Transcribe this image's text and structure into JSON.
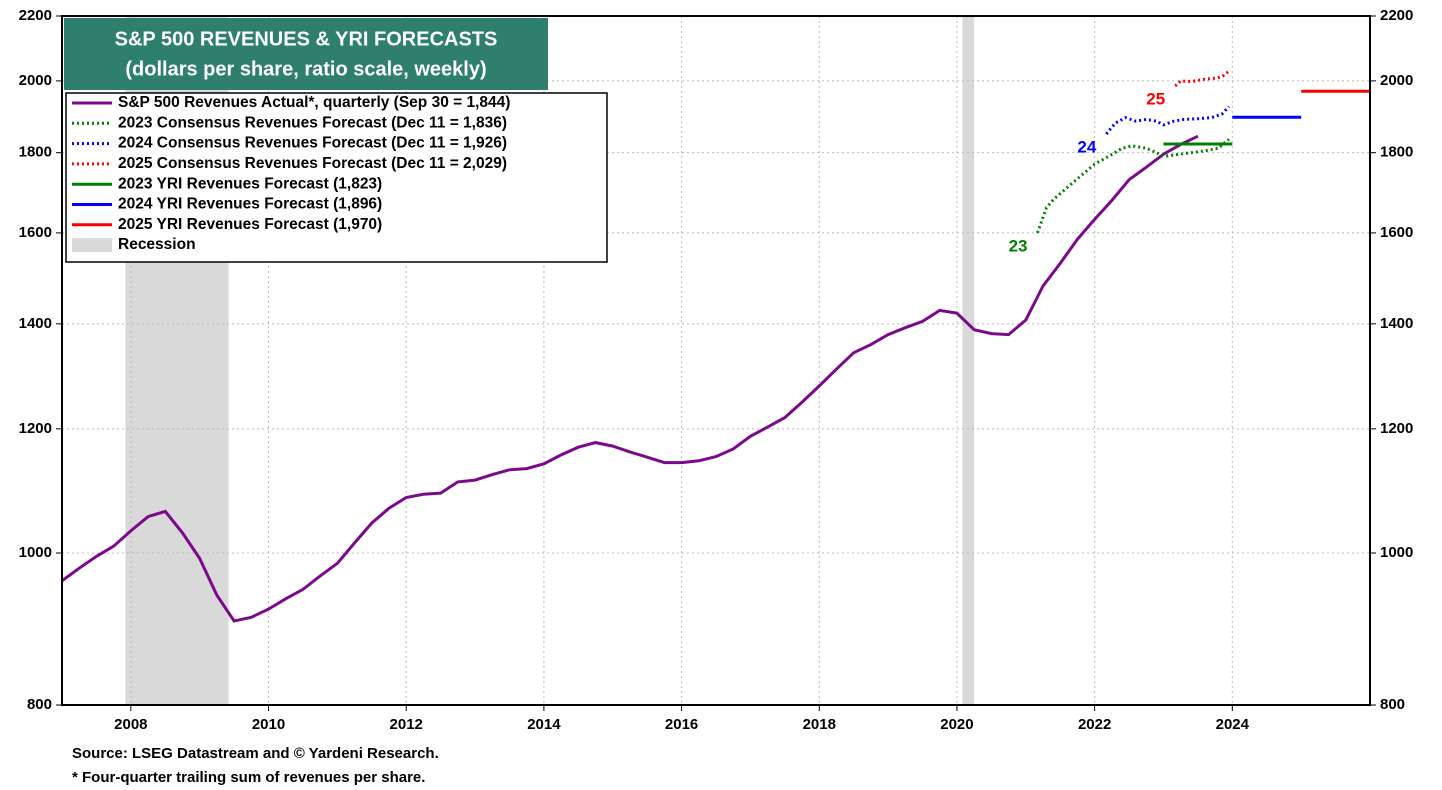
{
  "chart_data": {
    "type": "line",
    "title": "S&P 500 REVENUES & YRI FORECASTS",
    "subtitle": "(dollars per share, ratio scale, weekly)",
    "log_scale": true,
    "grid": true,
    "legend": "upper left",
    "xlim": [
      2007,
      2026
    ],
    "xticks": [
      2008,
      2010,
      2012,
      2014,
      2016,
      2018,
      2020,
      2022,
      2024
    ],
    "ylim": [
      800,
      2200
    ],
    "yticks": [
      800,
      1000,
      1200,
      1400,
      1600,
      1800,
      2000,
      2200
    ],
    "series": [
      {
        "name": "S&P 500 Revenues Actual*, quarterly (Sep 30 = 1,844)",
        "color": "#7a0a8a",
        "style": "solid",
        "x": [
          2007.0,
          2007.25,
          2007.5,
          2007.75,
          2008.0,
          2008.25,
          2008.5,
          2008.75,
          2009.0,
          2009.25,
          2009.5,
          2009.75,
          2010.0,
          2010.25,
          2010.5,
          2010.75,
          2011.0,
          2011.25,
          2011.5,
          2011.75,
          2012.0,
          2012.25,
          2012.5,
          2012.75,
          2013.0,
          2013.25,
          2013.5,
          2013.75,
          2014.0,
          2014.25,
          2014.5,
          2014.75,
          2015.0,
          2015.25,
          2015.5,
          2015.75,
          2016.0,
          2016.25,
          2016.5,
          2016.75,
          2017.0,
          2017.25,
          2017.5,
          2017.75,
          2018.0,
          2018.25,
          2018.5,
          2018.75,
          2019.0,
          2019.25,
          2019.5,
          2019.75,
          2020.0,
          2020.25,
          2020.5,
          2020.75,
          2021.0,
          2021.25,
          2021.5,
          2021.75,
          2022.0,
          2022.25,
          2022.5,
          2022.75,
          2023.0,
          2023.25,
          2023.5
        ],
        "values": [
          960,
          978,
          995,
          1010,
          1033,
          1055,
          1063,
          1030,
          992,
          940,
          905,
          910,
          921,
          935,
          948,
          967,
          985,
          1015,
          1045,
          1068,
          1085,
          1090,
          1092,
          1110,
          1113,
          1122,
          1130,
          1132,
          1140,
          1155,
          1168,
          1176,
          1170,
          1160,
          1151,
          1142,
          1142,
          1145,
          1152,
          1165,
          1187,
          1203,
          1220,
          1248,
          1278,
          1310,
          1342,
          1358,
          1378,
          1392,
          1405,
          1428,
          1422,
          1388,
          1380,
          1378,
          1408,
          1480,
          1530,
          1585,
          1632,
          1678,
          1730,
          1762,
          1796,
          1822,
          1844
        ]
      },
      {
        "name": "2023 Consensus Revenues Forecast (Dec 11 = 1,836)",
        "color": "#008000",
        "style": "dotted",
        "label": "23",
        "x": [
          2021.17,
          2021.3,
          2021.4,
          2021.6,
          2021.8,
          2022.0,
          2022.2,
          2022.4,
          2022.55,
          2022.75,
          2022.9,
          2023.0,
          2023.2,
          2023.4,
          2023.6,
          2023.8,
          2023.95
        ],
        "values": [
          1600,
          1660,
          1680,
          1710,
          1740,
          1770,
          1790,
          1812,
          1818,
          1812,
          1800,
          1790,
          1795,
          1800,
          1805,
          1812,
          1836
        ]
      },
      {
        "name": "2024 Consensus Revenues Forecast (Dec 11 = 1,926)",
        "color": "#0000ff",
        "style": "dotted",
        "label": "24",
        "x": [
          2022.17,
          2022.3,
          2022.45,
          2022.6,
          2022.75,
          2022.9,
          2023.0,
          2023.15,
          2023.3,
          2023.5,
          2023.7,
          2023.85,
          2023.95
        ],
        "values": [
          1850,
          1880,
          1895,
          1885,
          1890,
          1885,
          1875,
          1885,
          1890,
          1892,
          1895,
          1905,
          1926
        ]
      },
      {
        "name": "2025 Consensus Revenues Forecast (Dec 11 = 2,029)",
        "color": "#ff0000",
        "style": "dotted",
        "label": "25",
        "x": [
          2023.17,
          2023.25,
          2023.4,
          2023.6,
          2023.75,
          2023.85,
          2023.95
        ],
        "values": [
          1985,
          2000,
          1998,
          2005,
          2008,
          2012,
          2029
        ]
      },
      {
        "name": "2023 YRI Revenues Forecast (1,823)",
        "color": "#008000",
        "style": "solid",
        "x": [
          2023.0,
          2024.0
        ],
        "values": [
          1823,
          1823
        ]
      },
      {
        "name": "2024 YRI Revenues Forecast (1,896)",
        "color": "#0000ff",
        "style": "solid",
        "x": [
          2024.0,
          2025.0
        ],
        "values": [
          1896,
          1896
        ]
      },
      {
        "name": "2025 YRI Revenues Forecast (1,970)",
        "color": "#ff0000",
        "style": "solid",
        "x": [
          2025.0,
          2026.0
        ],
        "values": [
          1970,
          1970
        ]
      }
    ],
    "recession_label": "Recession",
    "recession_color": "#d9d9d9",
    "recessions": [
      {
        "start": 2007.92,
        "end": 2009.42
      },
      {
        "start": 2020.08,
        "end": 2020.25
      }
    ],
    "source": "Source: LSEG Datastream and © Yardeni Research.",
    "note": "* Four-quarter trailing sum of revenues per share."
  }
}
